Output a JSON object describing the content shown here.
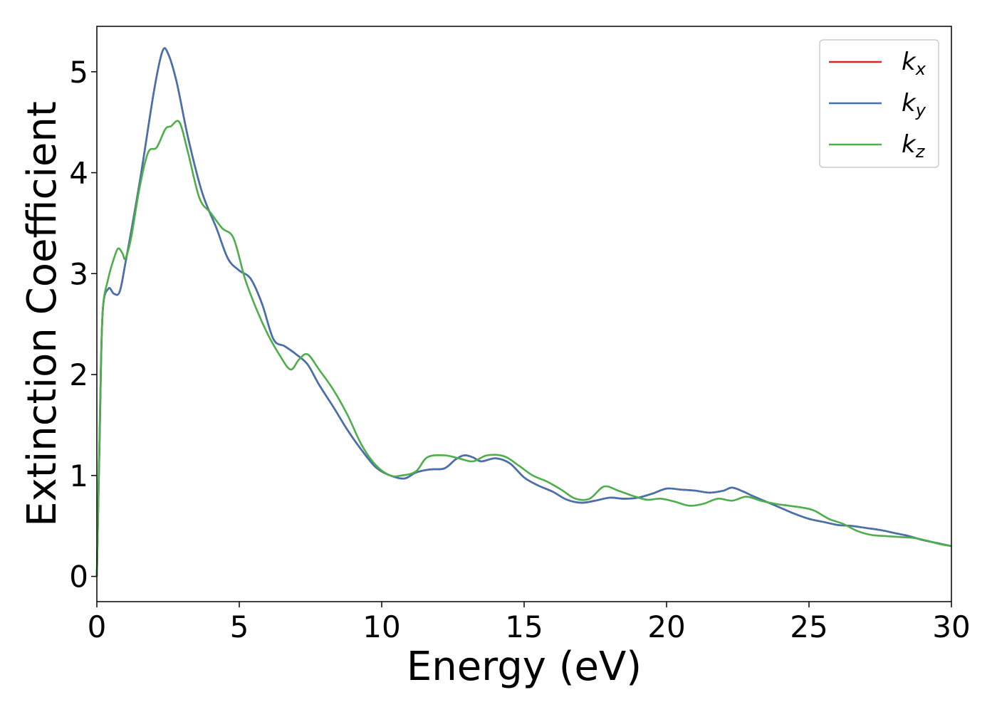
{
  "chart_data": {
    "type": "line",
    "title": "",
    "xlabel": "Energy (eV)",
    "ylabel": "Extinction Coefficient",
    "xlim": [
      0,
      30
    ],
    "ylim": [
      -0.25,
      5.45
    ],
    "xticks": [
      0,
      5,
      10,
      15,
      20,
      25,
      30
    ],
    "yticks": [
      0,
      1,
      2,
      3,
      4,
      5
    ],
    "grid": false,
    "legend_position": "top-right",
    "series": [
      {
        "name": "k_x",
        "legend_main": "k",
        "legend_sub": "x",
        "color": "#d62728",
        "points": [
          [
            0,
            0
          ],
          [
            0.1,
            1.4
          ],
          [
            0.2,
            2.6
          ],
          [
            0.4,
            2.85
          ],
          [
            0.6,
            2.8
          ],
          [
            0.8,
            2.82
          ],
          [
            1.0,
            3.1
          ],
          [
            1.5,
            3.9
          ],
          [
            2.0,
            4.8
          ],
          [
            2.3,
            5.2
          ],
          [
            2.5,
            5.18
          ],
          [
            2.8,
            4.9
          ],
          [
            3.2,
            4.35
          ],
          [
            3.7,
            3.8
          ],
          [
            4.2,
            3.45
          ],
          [
            4.6,
            3.15
          ],
          [
            5.0,
            3.03
          ],
          [
            5.4,
            2.95
          ],
          [
            5.8,
            2.7
          ],
          [
            6.2,
            2.35
          ],
          [
            6.6,
            2.28
          ],
          [
            7.0,
            2.2
          ],
          [
            7.4,
            2.1
          ],
          [
            7.8,
            1.9
          ],
          [
            8.3,
            1.68
          ],
          [
            8.8,
            1.45
          ],
          [
            9.3,
            1.25
          ],
          [
            9.8,
            1.08
          ],
          [
            10.3,
            1.0
          ],
          [
            10.8,
            0.97
          ],
          [
            11.2,
            1.03
          ],
          [
            11.7,
            1.06
          ],
          [
            12.2,
            1.07
          ],
          [
            12.6,
            1.16
          ],
          [
            12.9,
            1.2
          ],
          [
            13.2,
            1.18
          ],
          [
            13.5,
            1.14
          ],
          [
            14.0,
            1.17
          ],
          [
            14.5,
            1.12
          ],
          [
            15.0,
            0.98
          ],
          [
            15.5,
            0.9
          ],
          [
            16.0,
            0.84
          ],
          [
            16.5,
            0.76
          ],
          [
            17.0,
            0.73
          ],
          [
            17.5,
            0.75
          ],
          [
            18.0,
            0.78
          ],
          [
            18.5,
            0.77
          ],
          [
            19.0,
            0.78
          ],
          [
            19.5,
            0.82
          ],
          [
            20.0,
            0.87
          ],
          [
            20.5,
            0.86
          ],
          [
            21.0,
            0.85
          ],
          [
            21.5,
            0.83
          ],
          [
            22.0,
            0.85
          ],
          [
            22.3,
            0.88
          ],
          [
            22.7,
            0.84
          ],
          [
            23.0,
            0.8
          ],
          [
            23.5,
            0.74
          ],
          [
            24.0,
            0.68
          ],
          [
            24.5,
            0.62
          ],
          [
            25.0,
            0.57
          ],
          [
            25.5,
            0.54
          ],
          [
            26.0,
            0.51
          ],
          [
            26.5,
            0.5
          ],
          [
            27.0,
            0.48
          ],
          [
            27.5,
            0.46
          ],
          [
            28.0,
            0.43
          ],
          [
            28.5,
            0.4
          ],
          [
            29.0,
            0.36
          ],
          [
            29.5,
            0.33
          ],
          [
            30.0,
            0.3
          ]
        ]
      },
      {
        "name": "k_y",
        "legend_main": "k",
        "legend_sub": "y",
        "color": "#4472b0",
        "points": [
          [
            0,
            0
          ],
          [
            0.1,
            1.4
          ],
          [
            0.2,
            2.6
          ],
          [
            0.4,
            2.85
          ],
          [
            0.6,
            2.8
          ],
          [
            0.8,
            2.82
          ],
          [
            1.0,
            3.1
          ],
          [
            1.5,
            3.9
          ],
          [
            2.0,
            4.8
          ],
          [
            2.3,
            5.2
          ],
          [
            2.5,
            5.18
          ],
          [
            2.8,
            4.9
          ],
          [
            3.2,
            4.35
          ],
          [
            3.7,
            3.8
          ],
          [
            4.2,
            3.45
          ],
          [
            4.6,
            3.15
          ],
          [
            5.0,
            3.03
          ],
          [
            5.4,
            2.95
          ],
          [
            5.8,
            2.7
          ],
          [
            6.2,
            2.35
          ],
          [
            6.6,
            2.28
          ],
          [
            7.0,
            2.2
          ],
          [
            7.4,
            2.1
          ],
          [
            7.8,
            1.9
          ],
          [
            8.3,
            1.68
          ],
          [
            8.8,
            1.45
          ],
          [
            9.3,
            1.25
          ],
          [
            9.8,
            1.08
          ],
          [
            10.3,
            1.0
          ],
          [
            10.8,
            0.97
          ],
          [
            11.2,
            1.03
          ],
          [
            11.7,
            1.06
          ],
          [
            12.2,
            1.07
          ],
          [
            12.6,
            1.16
          ],
          [
            12.9,
            1.2
          ],
          [
            13.2,
            1.18
          ],
          [
            13.5,
            1.14
          ],
          [
            14.0,
            1.17
          ],
          [
            14.5,
            1.12
          ],
          [
            15.0,
            0.98
          ],
          [
            15.5,
            0.9
          ],
          [
            16.0,
            0.84
          ],
          [
            16.5,
            0.76
          ],
          [
            17.0,
            0.73
          ],
          [
            17.5,
            0.75
          ],
          [
            18.0,
            0.78
          ],
          [
            18.5,
            0.77
          ],
          [
            19.0,
            0.78
          ],
          [
            19.5,
            0.82
          ],
          [
            20.0,
            0.87
          ],
          [
            20.5,
            0.86
          ],
          [
            21.0,
            0.85
          ],
          [
            21.5,
            0.83
          ],
          [
            22.0,
            0.85
          ],
          [
            22.3,
            0.88
          ],
          [
            22.7,
            0.84
          ],
          [
            23.0,
            0.8
          ],
          [
            23.5,
            0.74
          ],
          [
            24.0,
            0.68
          ],
          [
            24.5,
            0.62
          ],
          [
            25.0,
            0.57
          ],
          [
            25.5,
            0.54
          ],
          [
            26.0,
            0.51
          ],
          [
            26.5,
            0.5
          ],
          [
            27.0,
            0.48
          ],
          [
            27.5,
            0.46
          ],
          [
            28.0,
            0.43
          ],
          [
            28.5,
            0.4
          ],
          [
            29.0,
            0.36
          ],
          [
            29.5,
            0.33
          ],
          [
            30.0,
            0.3
          ]
        ]
      },
      {
        "name": "k_z",
        "legend_main": "k",
        "legend_sub": "z",
        "color": "#4daf4a",
        "points": [
          [
            0,
            0
          ],
          [
            0.1,
            1.5
          ],
          [
            0.2,
            2.6
          ],
          [
            0.4,
            2.95
          ],
          [
            0.6,
            3.15
          ],
          [
            0.75,
            3.25
          ],
          [
            0.9,
            3.2
          ],
          [
            1.0,
            3.15
          ],
          [
            1.2,
            3.35
          ],
          [
            1.5,
            3.85
          ],
          [
            1.8,
            4.2
          ],
          [
            2.1,
            4.25
          ],
          [
            2.4,
            4.43
          ],
          [
            2.6,
            4.46
          ],
          [
            2.9,
            4.5
          ],
          [
            3.2,
            4.2
          ],
          [
            3.6,
            3.75
          ],
          [
            4.0,
            3.6
          ],
          [
            4.4,
            3.45
          ],
          [
            4.8,
            3.35
          ],
          [
            5.2,
            2.95
          ],
          [
            5.6,
            2.65
          ],
          [
            6.0,
            2.4
          ],
          [
            6.4,
            2.2
          ],
          [
            6.8,
            2.05
          ],
          [
            7.1,
            2.15
          ],
          [
            7.4,
            2.2
          ],
          [
            7.8,
            2.05
          ],
          [
            8.3,
            1.85
          ],
          [
            8.8,
            1.6
          ],
          [
            9.3,
            1.3
          ],
          [
            9.8,
            1.1
          ],
          [
            10.3,
            1.0
          ],
          [
            10.7,
            1.0
          ],
          [
            11.2,
            1.04
          ],
          [
            11.6,
            1.18
          ],
          [
            12.2,
            1.2
          ],
          [
            12.7,
            1.17
          ],
          [
            13.2,
            1.14
          ],
          [
            13.7,
            1.2
          ],
          [
            14.3,
            1.19
          ],
          [
            14.8,
            1.1
          ],
          [
            15.3,
            1.0
          ],
          [
            15.8,
            0.94
          ],
          [
            16.3,
            0.86
          ],
          [
            16.8,
            0.77
          ],
          [
            17.3,
            0.77
          ],
          [
            17.8,
            0.89
          ],
          [
            18.3,
            0.85
          ],
          [
            18.8,
            0.8
          ],
          [
            19.3,
            0.76
          ],
          [
            19.8,
            0.77
          ],
          [
            20.3,
            0.74
          ],
          [
            20.8,
            0.7
          ],
          [
            21.3,
            0.72
          ],
          [
            21.8,
            0.77
          ],
          [
            22.3,
            0.75
          ],
          [
            22.8,
            0.79
          ],
          [
            23.3,
            0.75
          ],
          [
            23.8,
            0.72
          ],
          [
            24.3,
            0.7
          ],
          [
            24.8,
            0.68
          ],
          [
            25.2,
            0.65
          ],
          [
            25.7,
            0.57
          ],
          [
            26.2,
            0.52
          ],
          [
            26.7,
            0.45
          ],
          [
            27.2,
            0.41
          ],
          [
            27.7,
            0.4
          ],
          [
            28.2,
            0.39
          ],
          [
            28.7,
            0.38
          ],
          [
            29.2,
            0.35
          ],
          [
            29.6,
            0.32
          ],
          [
            30.0,
            0.3
          ]
        ]
      }
    ]
  }
}
